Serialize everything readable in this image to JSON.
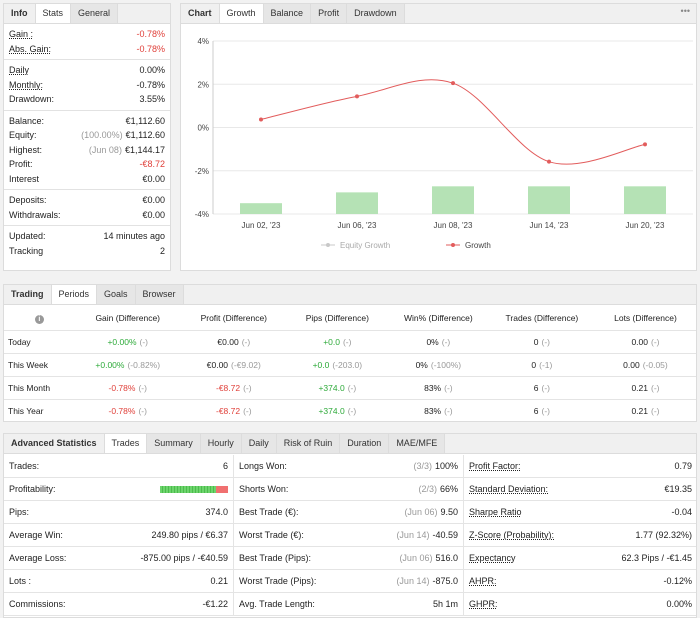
{
  "info": {
    "tabs": [
      "Info",
      "Stats",
      "General"
    ],
    "groups": [
      [
        {
          "label": "Gain :",
          "value": "-0.78%",
          "color": "#e0403a",
          "underline": true
        },
        {
          "label": "Abs. Gain:",
          "value": "-0.78%",
          "color": "#e0403a",
          "underline": true
        }
      ],
      [
        {
          "label": "Daily",
          "value": "0.00%",
          "underline": true
        },
        {
          "label": "Monthly:",
          "value": "-0.78%",
          "underline": true
        },
        {
          "label": "Drawdown:",
          "value": "3.55%"
        }
      ],
      [
        {
          "label": "Balance:",
          "value": "€1,112.60"
        },
        {
          "label": "Equity:",
          "note": "(100.00%)",
          "value": "€1,112.60"
        },
        {
          "label": "Highest:",
          "note": "(Jun 08)",
          "value": "€1,144.17"
        },
        {
          "label": "Profit:",
          "value": "-€8.72",
          "color": "#e0403a"
        },
        {
          "label": "Interest",
          "value": "€0.00"
        }
      ],
      [
        {
          "label": "Deposits:",
          "value": "€0.00"
        },
        {
          "label": "Withdrawals:",
          "value": "€0.00"
        }
      ],
      [
        {
          "label": "Updated:",
          "value": "14 minutes ago"
        },
        {
          "label": "Tracking",
          "value": "2"
        }
      ]
    ]
  },
  "chart_panel": {
    "tabs": [
      "Chart",
      "Growth",
      "Balance",
      "Profit",
      "Drawdown"
    ],
    "menu": "•••"
  },
  "chart_data": {
    "type": "line",
    "categories": [
      "Jun 02, '23",
      "Jun 06, '23",
      "Jun 08, '23",
      "Jun 14, '23",
      "Jun 20, '23"
    ],
    "ylim": [
      -4,
      4
    ],
    "yticks": [
      {
        "value": 4,
        "label": "4%"
      },
      {
        "value": 2,
        "label": "2%"
      },
      {
        "value": 0,
        "label": "0%"
      },
      {
        "value": -2,
        "label": "-2%"
      },
      {
        "value": -4,
        "label": "-4%"
      }
    ],
    "grid": true,
    "bars": {
      "color": "#b5e2b5",
      "values": [
        -3.5,
        -3.0,
        -2.72,
        -2.72,
        -2.72
      ]
    },
    "series": [
      {
        "name": "Equity Growth",
        "color": "#c8c8c8",
        "values": [
          null,
          null,
          null,
          null,
          null
        ]
      },
      {
        "name": "Growth",
        "color": "#e25c5c",
        "values": [
          0.37,
          1.44,
          2.05,
          -1.58,
          -0.78
        ]
      }
    ]
  },
  "periods": {
    "tabs": [
      "Trading",
      "Periods",
      "Goals",
      "Browser"
    ],
    "icon": "i",
    "columns": [
      "Gain (Difference)",
      "Profit (Difference)",
      "Pips (Difference)",
      "Win% (Difference)",
      "Trades (Difference)",
      "Lots (Difference)"
    ],
    "rows": [
      {
        "label": "Today",
        "cells": [
          [
            "+0.00%",
            "(-)"
          ],
          [
            "€0.00",
            "(-)"
          ],
          [
            "+0.0",
            "(-)"
          ],
          [
            "0%",
            "(-)"
          ],
          [
            "0",
            "(-)"
          ],
          [
            "0.00",
            "(-)"
          ]
        ]
      },
      {
        "label": "This Week",
        "cells": [
          [
            "+0.00%",
            "(-0.82%)"
          ],
          [
            "€0.00",
            "(-€9.02)"
          ],
          [
            "+0.0",
            "(-203.0)"
          ],
          [
            "0%",
            "(-100%)"
          ],
          [
            "0",
            "(-1)"
          ],
          [
            "0.00",
            "(-0.05)"
          ]
        ]
      },
      {
        "label": "This Month",
        "cells": [
          [
            "-0.78%",
            "(-)"
          ],
          [
            "-€8.72",
            "(-)"
          ],
          [
            "+374.0",
            "(-)"
          ],
          [
            "83%",
            "(-)"
          ],
          [
            "6",
            "(-)"
          ],
          [
            "0.21",
            "(-)"
          ]
        ]
      },
      {
        "label": "This Year",
        "cells": [
          [
            "-0.78%",
            "(-)"
          ],
          [
            "-€8.72",
            "(-)"
          ],
          [
            "+374.0",
            "(-)"
          ],
          [
            "83%",
            "(-)"
          ],
          [
            "6",
            "(-)"
          ],
          [
            "0.21",
            "(-)"
          ]
        ]
      }
    ]
  },
  "stats": {
    "tabs": [
      "Advanced Statistics",
      "Trades",
      "Summary",
      "Hourly",
      "Daily",
      "Risk of Ruin",
      "Duration",
      "MAE/MFE"
    ],
    "columns": [
      [
        {
          "label": "Trades:",
          "value": "6"
        },
        {
          "label": "Profitability:",
          "bar": 83
        },
        {
          "label": "Pips:",
          "value": "374.0"
        },
        {
          "label": "Average Win:",
          "value": "249.80 pips / €6.37"
        },
        {
          "label": "Average Loss:",
          "value": "-875.00 pips / -€40.59"
        },
        {
          "label": "Lots :",
          "value": "0.21"
        },
        {
          "label": "Commissions:",
          "value": "-€1.22"
        }
      ],
      [
        {
          "label": "Longs Won:",
          "note": "(3/3)",
          "value": "100%"
        },
        {
          "label": "Shorts Won:",
          "note": "(2/3)",
          "value": "66%"
        },
        {
          "label": "Best Trade (€):",
          "note": "(Jun 06)",
          "value": "9.50"
        },
        {
          "label": "Worst Trade (€):",
          "note": "(Jun 14)",
          "value": "-40.59"
        },
        {
          "label": "Best Trade (Pips):",
          "note": "(Jun 06)",
          "value": "516.0"
        },
        {
          "label": "Worst Trade (Pips):",
          "note": "(Jun 14)",
          "value": "-875.0"
        },
        {
          "label": "Avg. Trade Length:",
          "value": "5h 1m"
        }
      ],
      [
        {
          "label": "Profit Factor:",
          "value": "0.79",
          "underline": true
        },
        {
          "label": "Standard Deviation:",
          "value": "€19.35",
          "underline": true
        },
        {
          "label": "Sharpe Ratio",
          "value": "-0.04",
          "underline": true
        },
        {
          "label": "Z-Score (Probability):",
          "value": "1.77 (92.32%)",
          "underline": true
        },
        {
          "label": "Expectancy",
          "value": "62.3 Pips / -€1.45",
          "underline": true
        },
        {
          "label": "AHPR:",
          "value": "-0.12%",
          "underline": true
        },
        {
          "label": "GHPR:",
          "value": "0.00%",
          "underline": true
        }
      ]
    ]
  }
}
